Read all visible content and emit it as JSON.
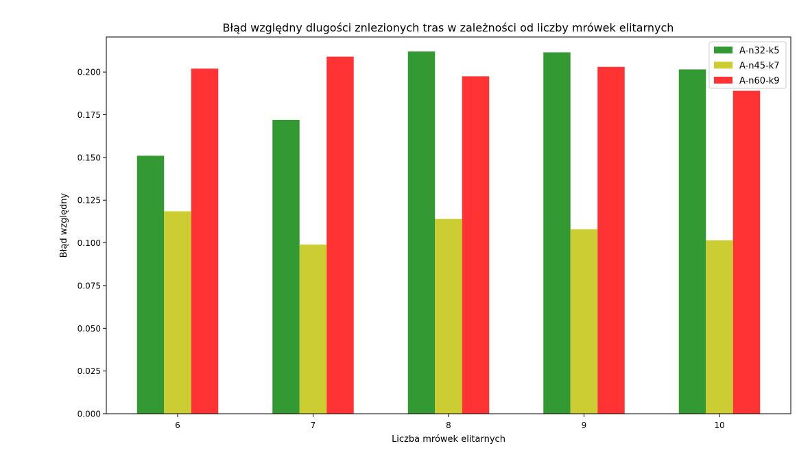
{
  "chart_data": {
    "type": "bar",
    "title": "Błąd względny dlugości znlezionych tras w zależności od liczby mrówek elitarnych",
    "xlabel": "Liczba mrówek elitarnych",
    "ylabel": "Błąd względny",
    "categories": [
      "6",
      "7",
      "8",
      "9",
      "10"
    ],
    "ylim": [
      0,
      0.2205
    ],
    "yticks": [
      "0.000",
      "0.025",
      "0.050",
      "0.075",
      "0.100",
      "0.125",
      "0.150",
      "0.175",
      "0.200"
    ],
    "grid": false,
    "legend_position": "top-right",
    "series": [
      {
        "name": "A-n32-k5",
        "color": "#339933",
        "values": [
          0.151,
          0.172,
          0.212,
          0.2115,
          0.2015
        ]
      },
      {
        "name": "A-n45-k7",
        "color": "#cccc33",
        "values": [
          0.1185,
          0.099,
          0.114,
          0.108,
          0.1015
        ]
      },
      {
        "name": "A-n60-k9",
        "color": "#ff3333",
        "values": [
          0.202,
          0.209,
          0.1975,
          0.203,
          0.189
        ]
      }
    ]
  }
}
